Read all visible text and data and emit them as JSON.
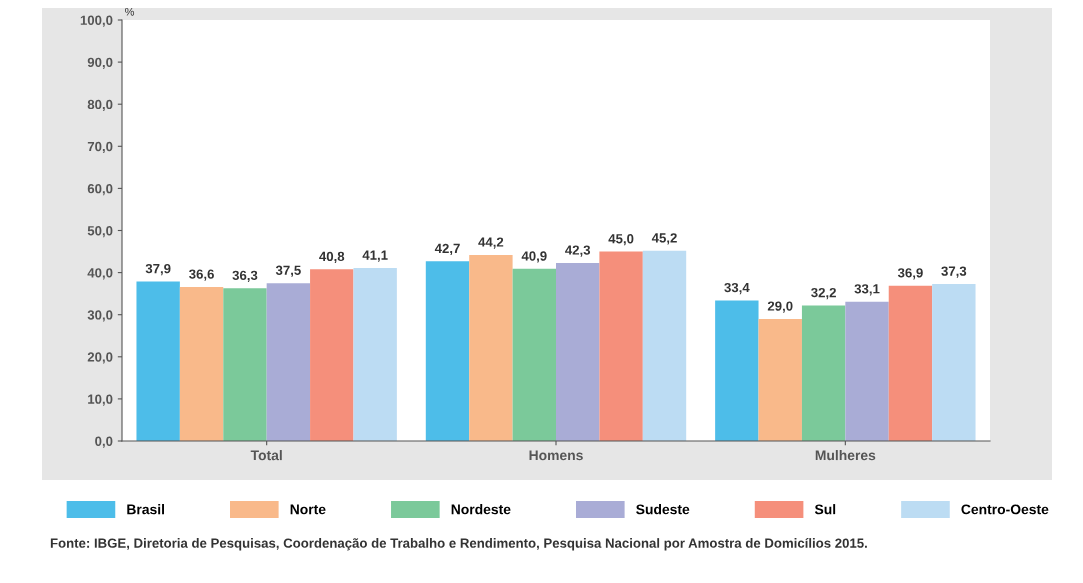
{
  "chart_data": {
    "type": "bar",
    "ylabel": "%",
    "categories": [
      "Total",
      "Homens",
      "Mulheres"
    ],
    "series": [
      {
        "name": "Brasil",
        "color": "#4dbde9",
        "values": [
          37.9,
          42.7,
          33.4
        ],
        "value_labels": [
          "37,9",
          "42,7",
          "33,4"
        ]
      },
      {
        "name": "Norte",
        "color": "#f9b98a",
        "values": [
          36.6,
          44.2,
          29.0
        ],
        "value_labels": [
          "36,6",
          "44,2",
          "29,0"
        ]
      },
      {
        "name": "Nordeste",
        "color": "#7bc99a",
        "values": [
          36.3,
          40.9,
          32.2
        ],
        "value_labels": [
          "36,3",
          "40,9",
          "32,2"
        ]
      },
      {
        "name": "Sudeste",
        "color": "#a9acd6",
        "values": [
          37.5,
          42.3,
          33.1
        ],
        "value_labels": [
          "37,5",
          "42,3",
          "33,1"
        ]
      },
      {
        "name": "Sul",
        "color": "#f58f7b",
        "values": [
          40.8,
          45.0,
          36.9
        ],
        "value_labels": [
          "40,8",
          "45,0",
          "36,9"
        ]
      },
      {
        "name": "Centro-Oeste",
        "color": "#bcdcf3",
        "values": [
          41.1,
          45.2,
          37.3
        ],
        "value_labels": [
          "41,1",
          "45,2",
          "37,3"
        ]
      }
    ],
    "ylim": [
      0,
      100
    ],
    "yticks": [
      {
        "value": 0,
        "label": "0,0"
      },
      {
        "value": 10,
        "label": "10,0"
      },
      {
        "value": 20,
        "label": "20,0"
      },
      {
        "value": 30,
        "label": "30,0"
      },
      {
        "value": 40,
        "label": "40,0"
      },
      {
        "value": 50,
        "label": "50,0"
      },
      {
        "value": 60,
        "label": "60,0"
      },
      {
        "value": 70,
        "label": "70,0"
      },
      {
        "value": 80,
        "label": "80,0"
      },
      {
        "value": 90,
        "label": "90,0"
      },
      {
        "value": 100,
        "label": "100,0"
      }
    ],
    "grid": false,
    "legend": "bottom",
    "annotations": [
      "Fonte: IBGE, Diretoria de Pesquisas, Coordenação de Trabalho e Rendimento, Pesquisa Nacional por Amostra de Domicílios 2015."
    ]
  }
}
